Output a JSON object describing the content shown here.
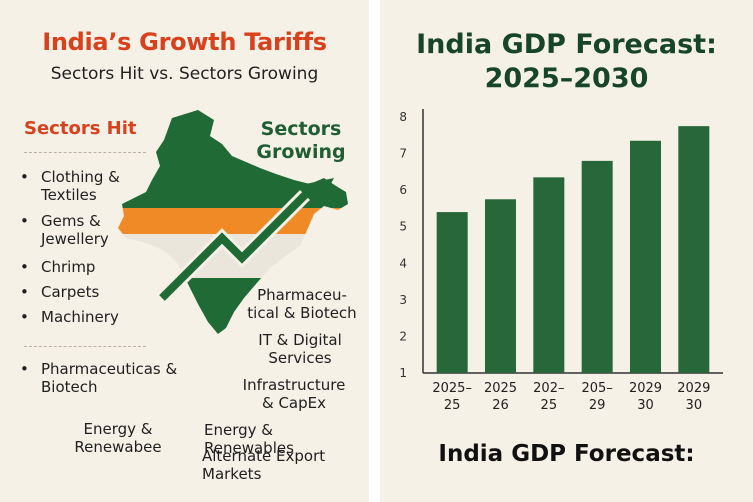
{
  "left": {
    "title": "India’s Growth Tariffs",
    "subtitle": "Sectors Hit vs. Sectors Growing",
    "hit_heading": "Sectors Hit",
    "growing_heading": "Sectors Growing",
    "hit_items": [
      "Clothing & Textiles",
      "Gems & Jewellery",
      "Chrimp",
      "Carpets",
      "Machinery",
      "Pharmaceuticas & Biotech"
    ],
    "bullet": "•",
    "bottom_left_item": "Energy & Renewabee",
    "growing_items": [
      "Pharmaceu-tical & Biotech",
      "IT & Digital Services",
      "Infrastructure & CapEx",
      "Energy & Renewables",
      "Alternate Export Markets"
    ],
    "colors": {
      "saffron": "#ef8a26",
      "green": "#1f6a35",
      "white_band": "#ebe6dc",
      "red_text": "#d9401c"
    },
    "icons": [
      "india-map-icon",
      "growth-arrow-icon"
    ]
  },
  "right": {
    "title": "India GDP Forecast: 2025–2030",
    "footer": "India GDP Forecast:",
    "bar_color": "#27673a"
  },
  "chart_data": {
    "type": "bar",
    "categories": [
      "2025–25",
      "2025 26",
      "202–25",
      "205–29",
      "2029 30",
      "2029 30"
    ],
    "values": [
      5.4,
      5.75,
      6.35,
      6.8,
      7.35,
      7.75
    ],
    "ylim": [
      1,
      8
    ],
    "yticks": [
      1,
      2,
      3,
      4,
      5,
      6,
      7,
      8
    ],
    "tick_labels": [
      [
        "2025–",
        "25"
      ],
      [
        "2025",
        "26"
      ],
      [
        "202–",
        "25"
      ],
      [
        "205–",
        "29"
      ],
      [
        "2029",
        "30"
      ],
      [
        "2029",
        "30"
      ]
    ],
    "grid": false
  }
}
